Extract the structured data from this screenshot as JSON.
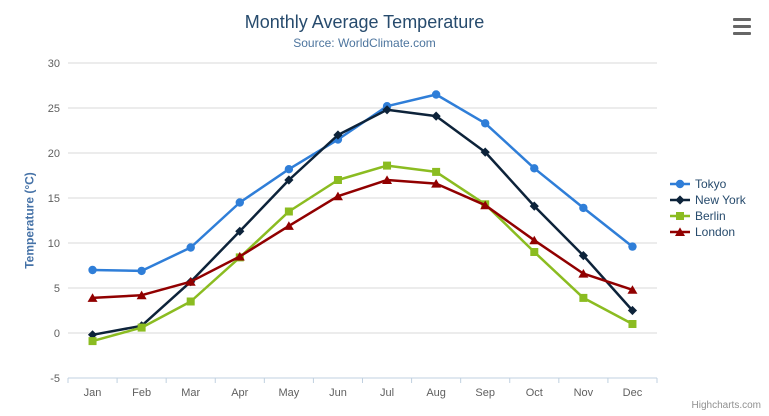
{
  "header": {
    "title": "Monthly Average Temperature",
    "subtitle": "Source: WorldClimate.com",
    "menu_icon": "hamburger-icon"
  },
  "credit": {
    "label": "Highcharts.com"
  },
  "colors": {
    "title": "#274b6d",
    "subtitle": "#4d759e",
    "axis_label": "#606060",
    "axis_title": "#4572a7",
    "grid": "#d8d8d8",
    "axis_line": "#c0d0e0",
    "legend_text": "#274b6d",
    "credit": "#909090",
    "menu_icon": "#666666"
  },
  "chart_data": {
    "type": "line",
    "title": "Monthly Average Temperature",
    "subtitle": "Source: WorldClimate.com",
    "xlabel": "",
    "ylabel": "Temperature (°C)",
    "ylim": [
      -5,
      30
    ],
    "ytick_step": 5,
    "grid": true,
    "legend_position": "right",
    "categories": [
      "Jan",
      "Feb",
      "Mar",
      "Apr",
      "May",
      "Jun",
      "Jul",
      "Aug",
      "Sep",
      "Oct",
      "Nov",
      "Dec"
    ],
    "series": [
      {
        "name": "Tokyo",
        "color": "#2f7ed8",
        "marker": "circle",
        "values": [
          7.0,
          6.9,
          9.5,
          14.5,
          18.2,
          21.5,
          25.2,
          26.5,
          23.3,
          18.3,
          13.9,
          9.6
        ]
      },
      {
        "name": "New York",
        "color": "#0d233a",
        "marker": "diamond",
        "values": [
          -0.2,
          0.8,
          5.7,
          11.3,
          17.0,
          22.0,
          24.8,
          24.1,
          20.1,
          14.1,
          8.6,
          2.5
        ]
      },
      {
        "name": "Berlin",
        "color": "#8bbc21",
        "marker": "square",
        "values": [
          -0.9,
          0.6,
          3.5,
          8.4,
          13.5,
          17.0,
          18.6,
          17.9,
          14.3,
          9.0,
          3.9,
          1.0
        ]
      },
      {
        "name": "London",
        "color": "#910000",
        "marker": "triangle",
        "values": [
          3.9,
          4.2,
          5.7,
          8.5,
          11.9,
          15.2,
          17.0,
          16.6,
          14.2,
          10.3,
          6.6,
          4.8
        ]
      }
    ]
  }
}
